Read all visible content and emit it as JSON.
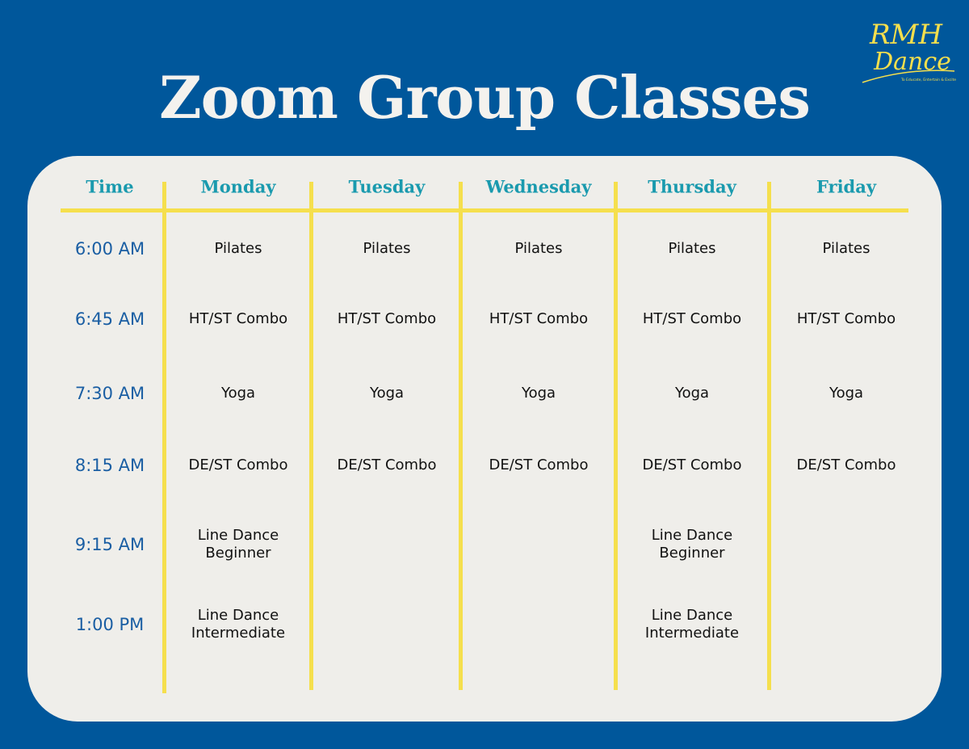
{
  "title": "Zoom Group Classes",
  "logo": {
    "line1": "RMH",
    "line2": "Dance",
    "tagline": "To Educate, Entertain & Excite"
  },
  "colors": {
    "background": "#00579B",
    "card": "#EFEEEA",
    "accent": "#F5DF4D",
    "header": "#1A9AAE",
    "time": "#1A5EA3"
  },
  "schedule": {
    "headers": [
      "Time",
      "Monday",
      "Tuesday",
      "Wednesday",
      "Thursday",
      "Friday"
    ],
    "rows": [
      {
        "time": "6:00 AM",
        "classes": [
          "Pilates",
          "Pilates",
          "Pilates",
          "Pilates",
          "Pilates"
        ]
      },
      {
        "time": "6:45 AM",
        "classes": [
          "HT/ST Combo",
          "HT/ST Combo",
          "HT/ST Combo",
          "HT/ST Combo",
          "HT/ST Combo"
        ]
      },
      {
        "time": "7:30 AM",
        "classes": [
          "Yoga",
          "Yoga",
          "Yoga",
          "Yoga",
          "Yoga"
        ]
      },
      {
        "time": "8:15 AM",
        "classes": [
          "DE/ST Combo",
          "DE/ST Combo",
          "DE/ST Combo",
          "DE/ST Combo",
          "DE/ST Combo"
        ]
      },
      {
        "time": "9:15 AM",
        "classes": [
          "Line Dance\nBeginner",
          "",
          "",
          "Line Dance\nBeginner",
          ""
        ]
      },
      {
        "time": "1:00 PM",
        "classes": [
          "Line Dance\nIntermediate",
          "",
          "",
          "Line Dance\nIntermediate",
          ""
        ]
      }
    ]
  }
}
